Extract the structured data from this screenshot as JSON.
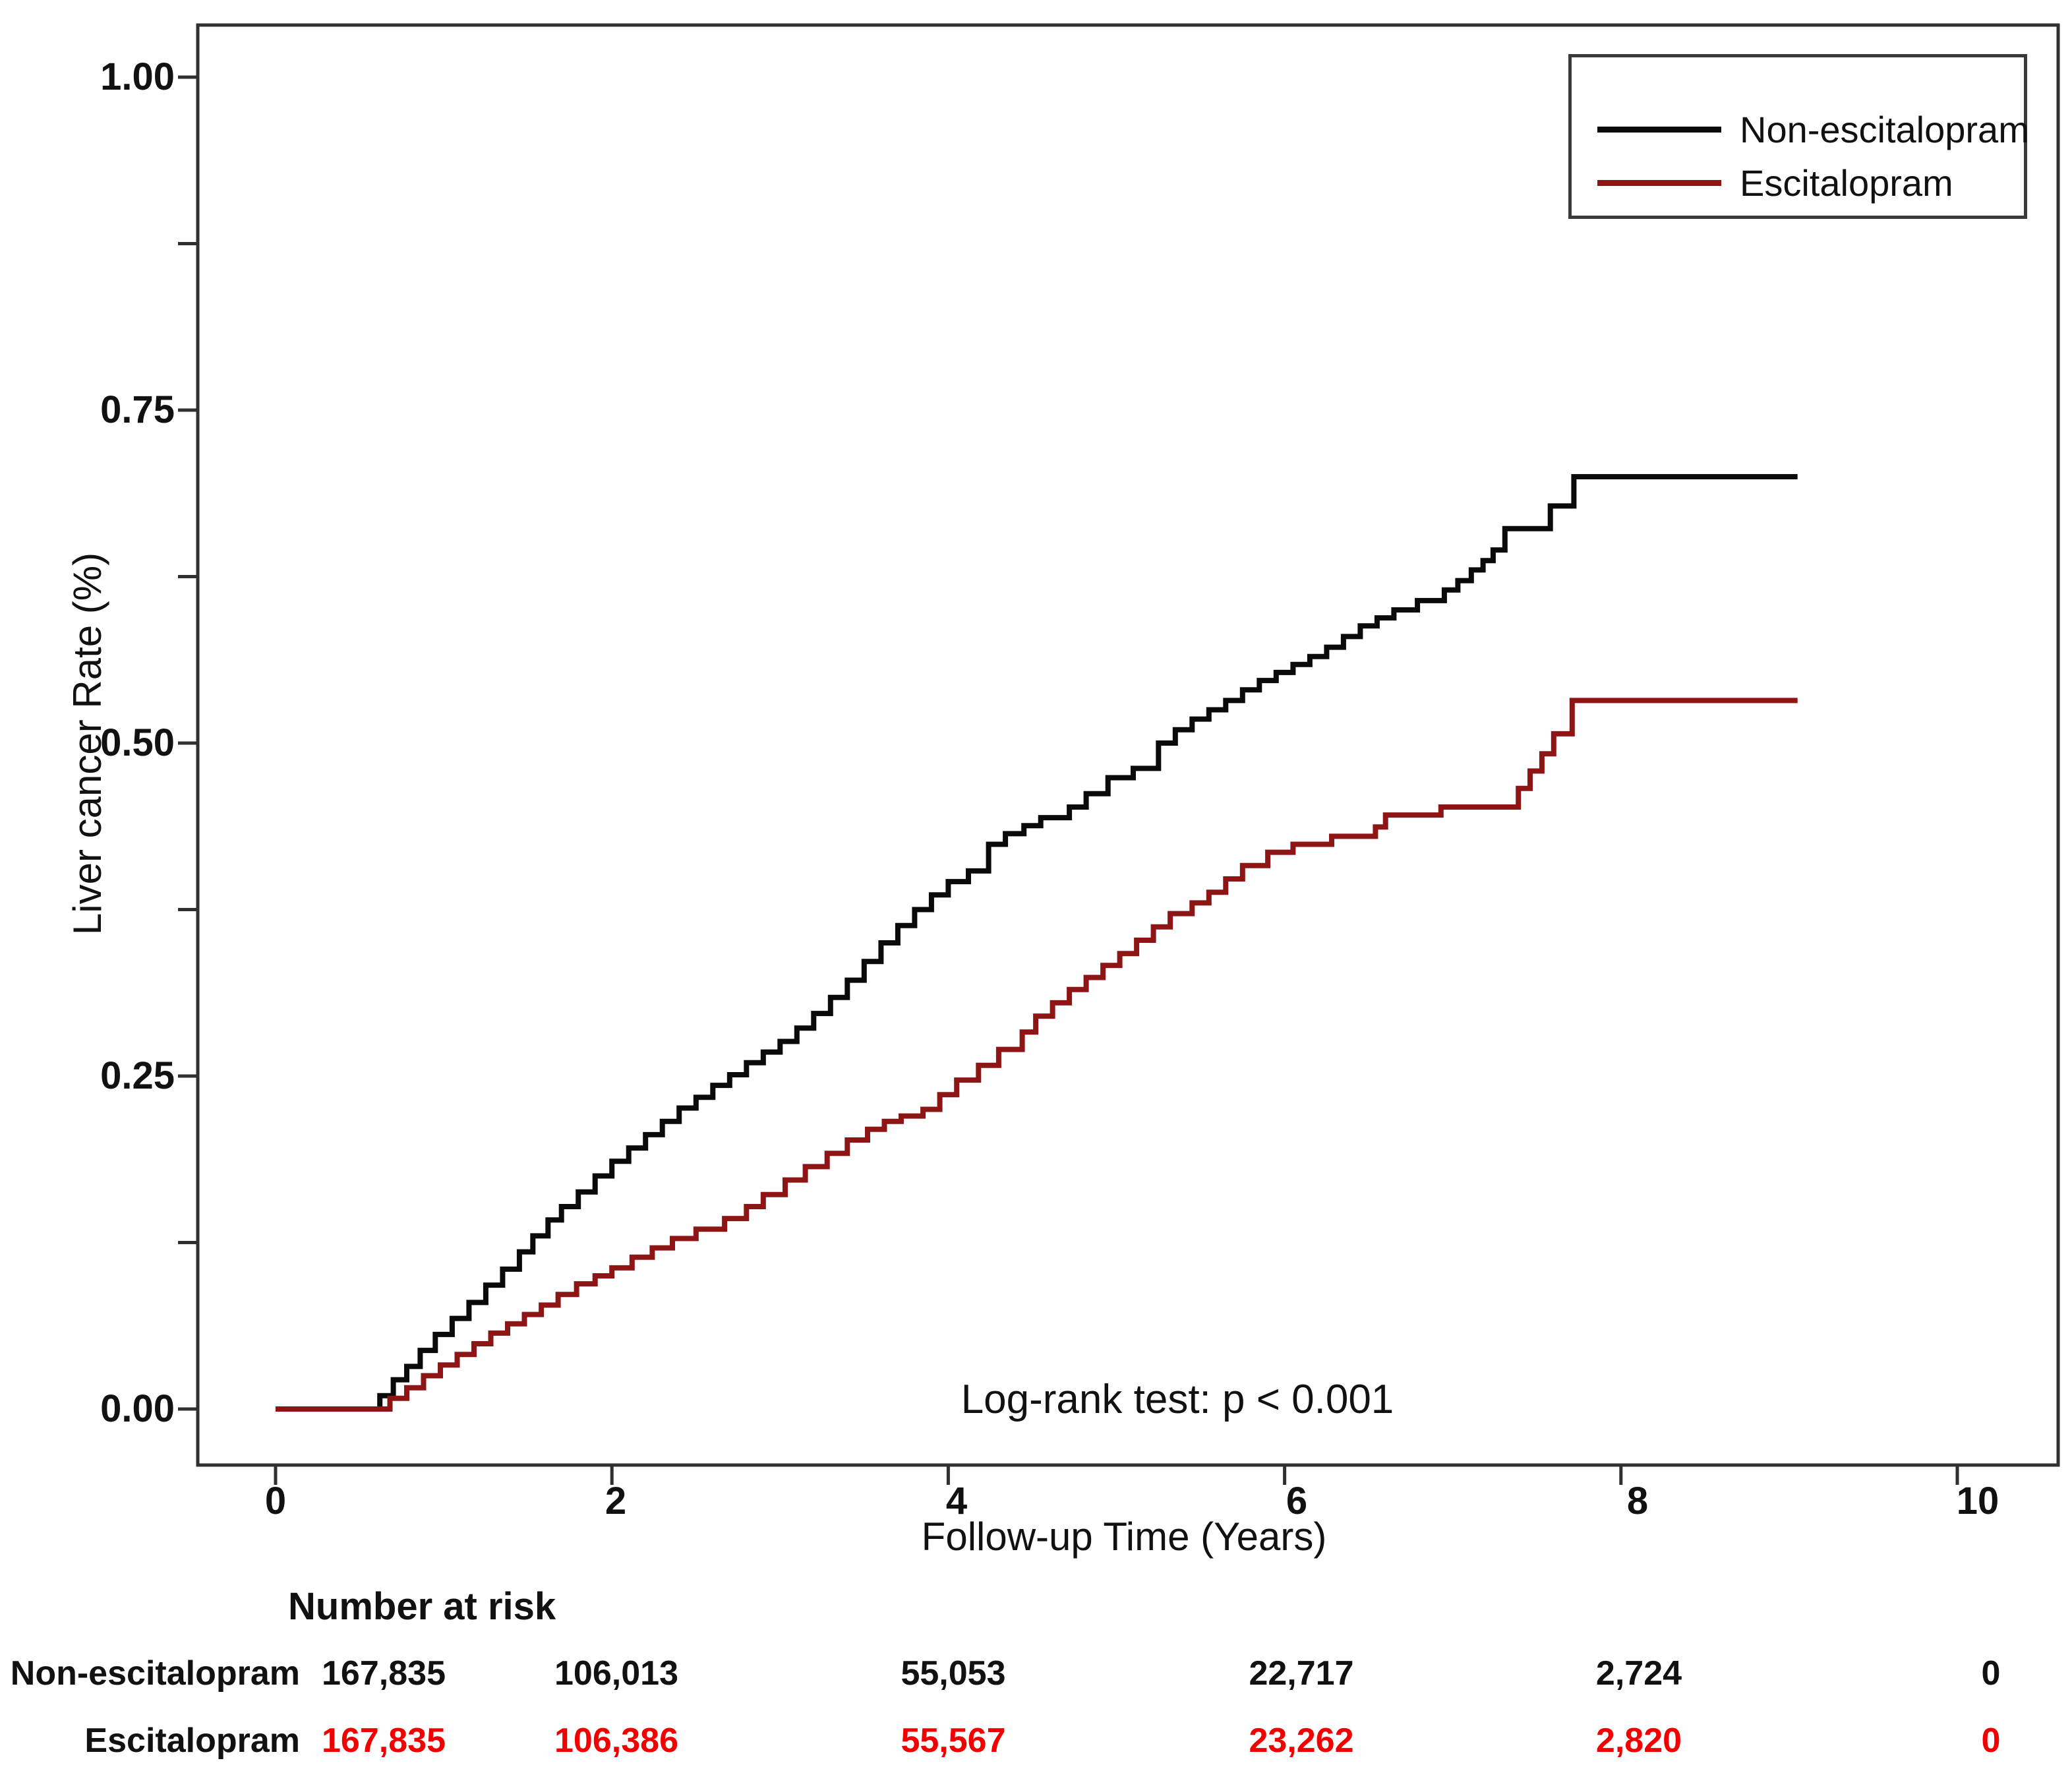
{
  "figure": {
    "y_axis_title": "Liver cancer Rate (%)",
    "x_axis_title": "Follow-up Time (Years)",
    "annotation": "Log-rank test: p < 0.001",
    "background": "#ffffff",
    "border_color": "#303030"
  },
  "chart_data": {
    "type": "line",
    "subtype": "kaplan-meier-step",
    "title": "",
    "xlabel": "Follow-up Time (Years)",
    "ylabel": "Liver cancer Rate (%)",
    "xlim": [
      -0.46,
      10.6
    ],
    "ylim": [
      -0.04,
      1.04
    ],
    "grid": false,
    "legend_position": "top-right",
    "annotation": "Log-rank test: p < 0.001",
    "xticks": [
      0,
      2,
      4,
      6,
      8,
      10
    ],
    "xtick_labels": [
      "0",
      "2",
      "4",
      "6",
      "8",
      "10"
    ],
    "yticks": [
      0.0,
      0.25,
      0.5,
      0.75,
      1.0
    ],
    "ytick_labels": [
      "0.00",
      "0.25",
      "0.50",
      "0.75",
      "1.00"
    ],
    "yticks_minor": [
      0.125,
      0.375,
      0.625,
      0.875
    ],
    "series": [
      {
        "name": "Non-escitalopram",
        "color": "#0a0a0a",
        "points": [
          [
            0,
            0
          ],
          [
            0.55,
            0
          ],
          [
            0.62,
            0.01
          ],
          [
            0.7,
            0.022
          ],
          [
            0.78,
            0.032
          ],
          [
            0.86,
            0.044
          ],
          [
            0.95,
            0.056
          ],
          [
            1.05,
            0.068
          ],
          [
            1.15,
            0.08
          ],
          [
            1.25,
            0.093
          ],
          [
            1.35,
            0.105
          ],
          [
            1.45,
            0.118
          ],
          [
            1.53,
            0.13
          ],
          [
            1.62,
            0.142
          ],
          [
            1.7,
            0.152
          ],
          [
            1.8,
            0.163
          ],
          [
            1.9,
            0.175
          ],
          [
            2.0,
            0.186
          ],
          [
            2.1,
            0.196
          ],
          [
            2.2,
            0.206
          ],
          [
            2.3,
            0.216
          ],
          [
            2.4,
            0.226
          ],
          [
            2.5,
            0.234
          ],
          [
            2.6,
            0.243
          ],
          [
            2.7,
            0.251
          ],
          [
            2.8,
            0.26
          ],
          [
            2.9,
            0.268
          ],
          [
            3.0,
            0.276
          ],
          [
            3.1,
            0.286
          ],
          [
            3.2,
            0.297
          ],
          [
            3.3,
            0.309
          ],
          [
            3.4,
            0.322
          ],
          [
            3.5,
            0.336
          ],
          [
            3.6,
            0.35
          ],
          [
            3.7,
            0.363
          ],
          [
            3.8,
            0.375
          ],
          [
            3.9,
            0.386
          ],
          [
            4.0,
            0.396
          ],
          [
            4.12,
            0.404
          ],
          [
            4.24,
            0.424
          ],
          [
            4.34,
            0.432
          ],
          [
            4.45,
            0.438
          ],
          [
            4.55,
            0.444
          ],
          [
            4.72,
            0.452
          ],
          [
            4.82,
            0.462
          ],
          [
            4.95,
            0.474
          ],
          [
            5.1,
            0.481
          ],
          [
            5.25,
            0.5
          ],
          [
            5.35,
            0.51
          ],
          [
            5.45,
            0.518
          ],
          [
            5.55,
            0.525
          ],
          [
            5.65,
            0.532
          ],
          [
            5.75,
            0.54
          ],
          [
            5.85,
            0.547
          ],
          [
            5.95,
            0.553
          ],
          [
            6.05,
            0.559
          ],
          [
            6.15,
            0.565
          ],
          [
            6.25,
            0.572
          ],
          [
            6.35,
            0.58
          ],
          [
            6.45,
            0.588
          ],
          [
            6.55,
            0.594
          ],
          [
            6.65,
            0.6
          ],
          [
            6.79,
            0.607
          ],
          [
            6.95,
            0.615
          ],
          [
            7.03,
            0.622
          ],
          [
            7.11,
            0.63
          ],
          [
            7.18,
            0.637
          ],
          [
            7.24,
            0.645
          ],
          [
            7.31,
            0.661
          ],
          [
            7.58,
            0.678
          ],
          [
            7.72,
            0.7
          ],
          [
            9.05,
            0.7
          ]
        ]
      },
      {
        "name": "Escitalopram",
        "color": "#8e1515",
        "points": [
          [
            0,
            0
          ],
          [
            0.6,
            0
          ],
          [
            0.68,
            0.008
          ],
          [
            0.78,
            0.016
          ],
          [
            0.88,
            0.025
          ],
          [
            0.98,
            0.033
          ],
          [
            1.08,
            0.041
          ],
          [
            1.18,
            0.049
          ],
          [
            1.28,
            0.057
          ],
          [
            1.38,
            0.064
          ],
          [
            1.48,
            0.071
          ],
          [
            1.58,
            0.078
          ],
          [
            1.68,
            0.086
          ],
          [
            1.79,
            0.094
          ],
          [
            1.9,
            0.1
          ],
          [
            2.0,
            0.106
          ],
          [
            2.12,
            0.114
          ],
          [
            2.24,
            0.121
          ],
          [
            2.36,
            0.128
          ],
          [
            2.5,
            0.135
          ],
          [
            2.67,
            0.143
          ],
          [
            2.8,
            0.152
          ],
          [
            2.9,
            0.161
          ],
          [
            3.03,
            0.172
          ],
          [
            3.15,
            0.182
          ],
          [
            3.28,
            0.192
          ],
          [
            3.4,
            0.202
          ],
          [
            3.52,
            0.21
          ],
          [
            3.62,
            0.216
          ],
          [
            3.72,
            0.22
          ],
          [
            3.85,
            0.225
          ],
          [
            3.95,
            0.236
          ],
          [
            4.05,
            0.247
          ],
          [
            4.18,
            0.258
          ],
          [
            4.3,
            0.27
          ],
          [
            4.44,
            0.283
          ],
          [
            4.52,
            0.295
          ],
          [
            4.62,
            0.305
          ],
          [
            4.72,
            0.315
          ],
          [
            4.82,
            0.324
          ],
          [
            4.92,
            0.333
          ],
          [
            5.02,
            0.342
          ],
          [
            5.12,
            0.352
          ],
          [
            5.22,
            0.362
          ],
          [
            5.32,
            0.372
          ],
          [
            5.45,
            0.38
          ],
          [
            5.55,
            0.388
          ],
          [
            5.65,
            0.398
          ],
          [
            5.75,
            0.408
          ],
          [
            5.9,
            0.418
          ],
          [
            6.05,
            0.424
          ],
          [
            6.28,
            0.43
          ],
          [
            6.54,
            0.437
          ],
          [
            6.6,
            0.446
          ],
          [
            6.93,
            0.452
          ],
          [
            7.39,
            0.466
          ],
          [
            7.46,
            0.479
          ],
          [
            7.53,
            0.492
          ],
          [
            7.6,
            0.507
          ],
          [
            7.71,
            0.532
          ],
          [
            9.05,
            0.532
          ]
        ]
      }
    ]
  },
  "legend": {
    "entries": [
      {
        "label": "Non-escitalopram",
        "color": "#0a0a0a"
      },
      {
        "label": "Escitalopram",
        "color": "#8e1515"
      }
    ]
  },
  "risk_table": {
    "heading": "Number at risk",
    "time_points": [
      0,
      2,
      4,
      6,
      8,
      10
    ],
    "rows": [
      {
        "label": "Non-escitalopram",
        "color": "#111111",
        "values": [
          "167,835",
          "106,013",
          "55,053",
          "22,717",
          "2,724",
          "0"
        ]
      },
      {
        "label": "Escitalopram",
        "color": "#f20000",
        "values": [
          "167,835",
          "106,386",
          "55,567",
          "23,262",
          "2,820",
          "0"
        ]
      }
    ]
  }
}
